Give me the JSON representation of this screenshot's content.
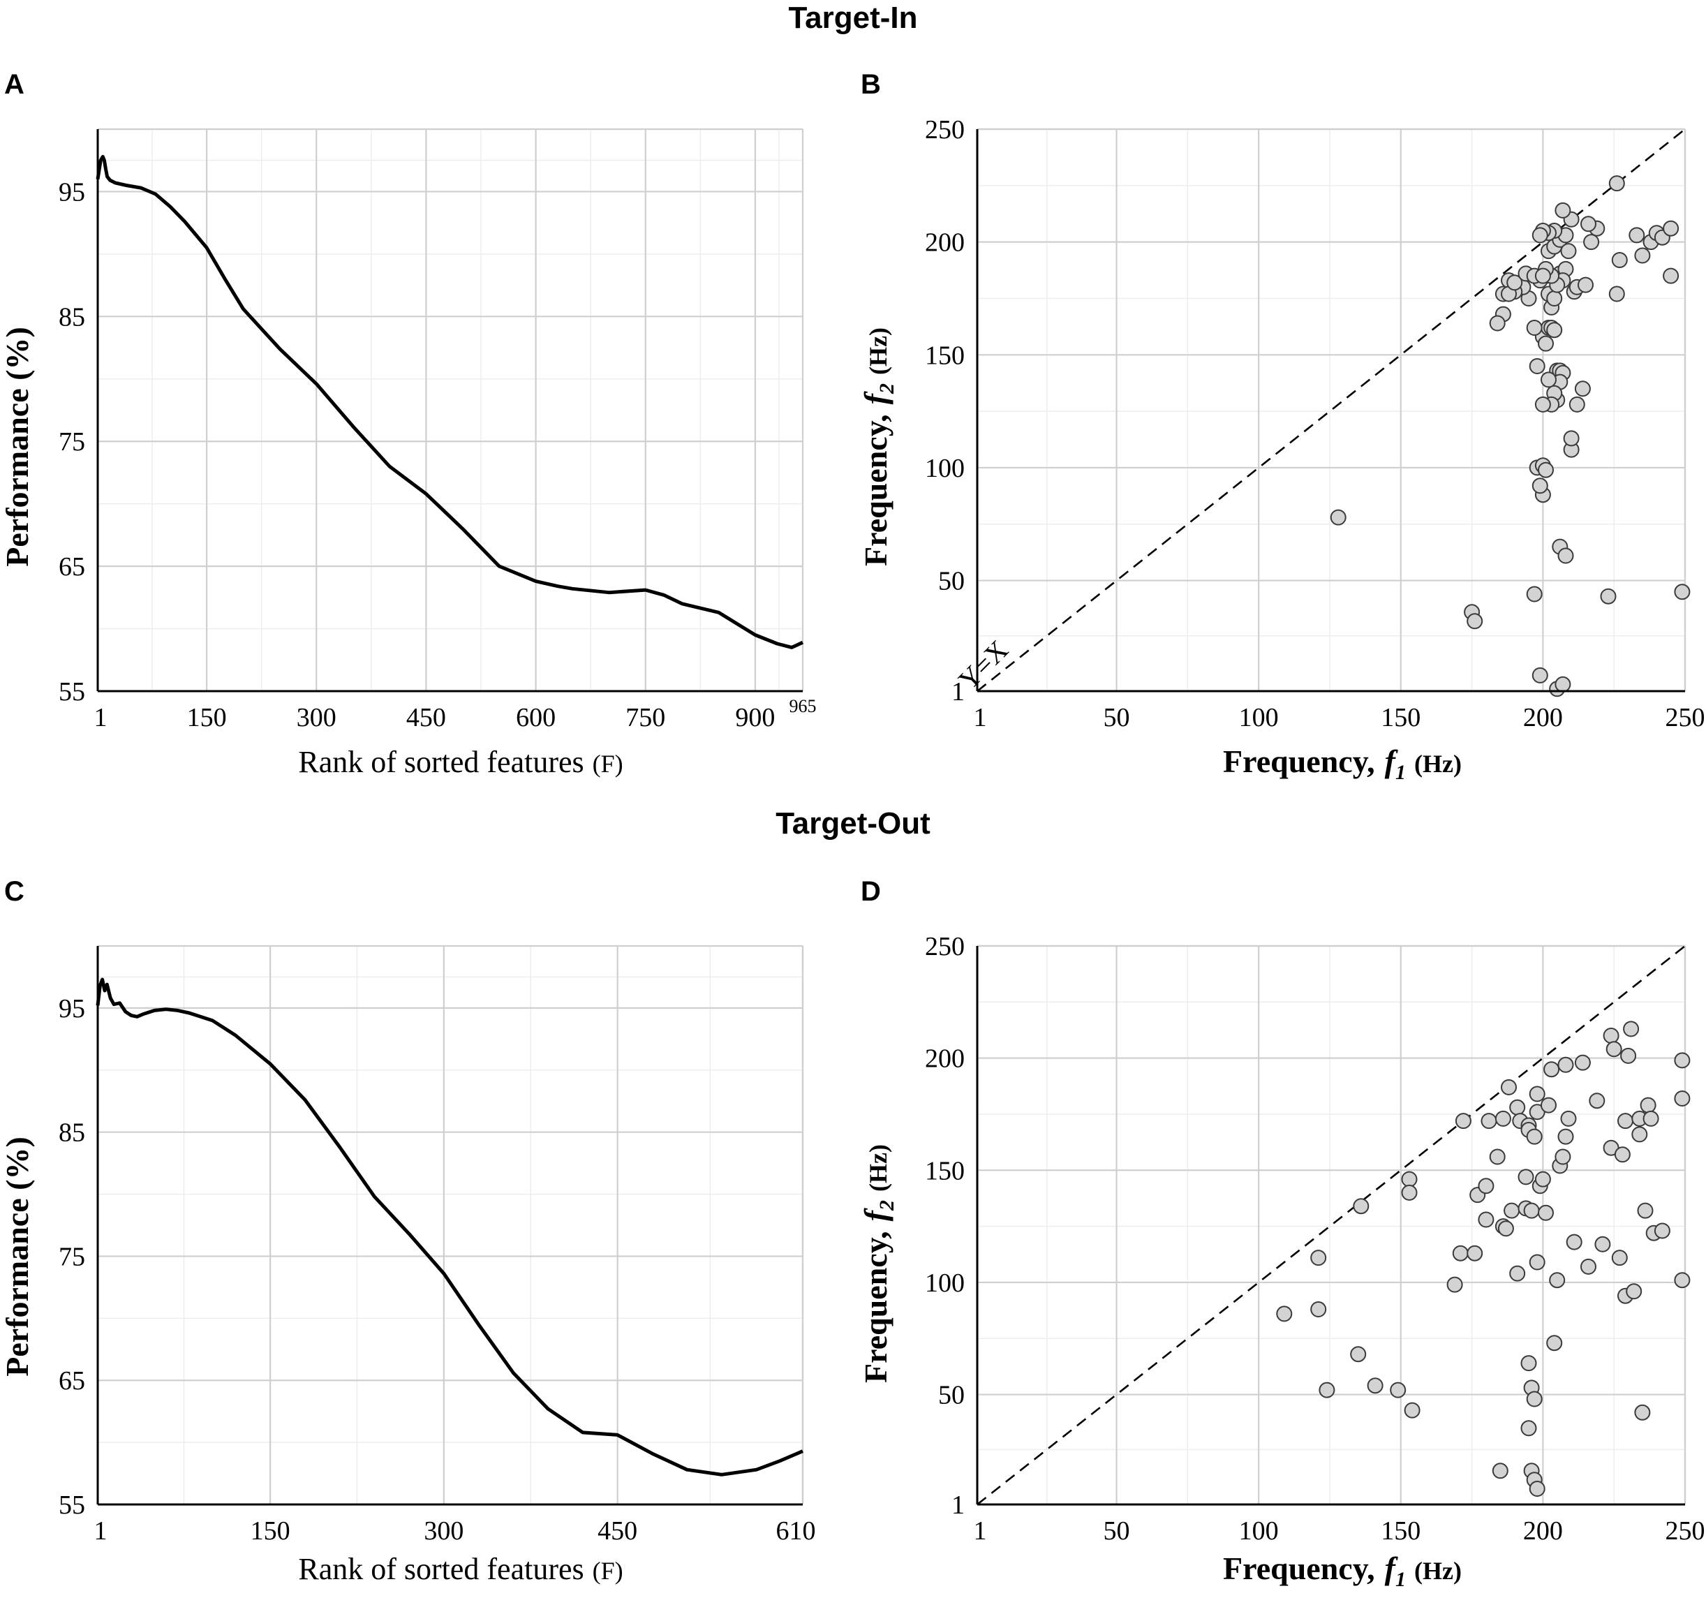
{
  "figure": {
    "section_titles": [
      "Target-In",
      "Target-Out"
    ]
  },
  "chart_data": [
    {
      "panel": "A",
      "type": "line",
      "title": "",
      "xlabel_main": "Rank of sorted features",
      "xlabel_unit": "(F)",
      "ylabel": "Performance (%)",
      "xlim": [
        1,
        965
      ],
      "ylim": [
        55,
        100
      ],
      "xticks": [
        "1",
        "150",
        "300",
        "450",
        "600",
        "750",
        "900"
      ],
      "xticks_extra": "965",
      "yticks": [
        "55",
        "65",
        "75",
        "85",
        "95"
      ],
      "x": [
        1,
        5,
        8,
        10,
        12,
        14,
        18,
        25,
        40,
        60,
        80,
        100,
        120,
        150,
        175,
        200,
        250,
        300,
        350,
        400,
        450,
        500,
        550,
        600,
        630,
        650,
        700,
        750,
        775,
        800,
        850,
        900,
        930,
        950,
        965
      ],
      "y": [
        96,
        97.5,
        97.8,
        97.5,
        96.8,
        96.2,
        95.9,
        95.7,
        95.5,
        95.3,
        94.8,
        93.8,
        92.6,
        90.5,
        88,
        85.6,
        82.4,
        79.6,
        76.2,
        73,
        70.8,
        68,
        65,
        63.8,
        63.4,
        63.2,
        62.9,
        63.1,
        62.7,
        62,
        61.3,
        59.5,
        58.8,
        58.5,
        58.9
      ],
      "line_color": "#000000"
    },
    {
      "panel": "B",
      "type": "scatter",
      "xlabel_main": "Frequency,",
      "xlabel_symbol": "f",
      "xlabel_sub": "1",
      "xlabel_unit": "(Hz)",
      "ylabel_main": "Frequency,",
      "ylabel_symbol": "f",
      "ylabel_sub": "2",
      "ylabel_unit": "(Hz)",
      "xlim": [
        1,
        250
      ],
      "ylim": [
        1,
        250
      ],
      "xticks": [
        "1",
        "50",
        "100",
        "150",
        "200",
        "250"
      ],
      "yticks": [
        "1",
        "50",
        "100",
        "150",
        "200",
        "250"
      ],
      "diagonal_label": "Y=X",
      "marker_color": "#d3d3d3",
      "x": [
        128,
        175,
        176,
        197,
        199,
        198,
        200,
        201,
        200,
        199,
        198,
        200,
        202,
        201,
        203,
        204,
        205,
        206,
        207,
        206,
        205,
        204,
        203,
        202,
        200,
        201,
        202,
        203,
        204,
        206,
        208,
        207,
        205,
        203,
        201,
        199,
        197,
        195,
        193,
        190,
        188,
        186,
        184,
        186,
        188,
        190,
        194,
        197,
        200,
        202,
        204,
        206,
        208,
        209,
        211,
        212,
        215,
        217,
        219,
        216,
        210,
        207,
        204,
        202,
        200,
        199,
        226,
        227,
        233,
        235,
        238,
        240,
        242,
        245,
        245,
        249,
        223,
        205,
        207,
        206,
        208,
        210,
        212,
        214,
        210,
        226
      ],
      "y": [
        78,
        36,
        32,
        44,
        8,
        100,
        101,
        99,
        88,
        92,
        145,
        158,
        162,
        155,
        162,
        161,
        143,
        143,
        142,
        138,
        130,
        133,
        128,
        139,
        128,
        185,
        177,
        171,
        175,
        186,
        188,
        183,
        181,
        185,
        188,
        183,
        162,
        175,
        180,
        178,
        183,
        168,
        164,
        177,
        177,
        182,
        186,
        185,
        185,
        196,
        198,
        201,
        203,
        196,
        178,
        180,
        181,
        200,
        206,
        208,
        210,
        214,
        205,
        204,
        205,
        203,
        226,
        192,
        203,
        194,
        200,
        204,
        202,
        206,
        185,
        45,
        43,
        2,
        4,
        65,
        61,
        108,
        128,
        135,
        113,
        177
      ]
    },
    {
      "panel": "C",
      "type": "line",
      "title": "",
      "xlabel_main": "Rank of sorted features",
      "xlabel_unit": "(F)",
      "ylabel": "Performance (%)",
      "xlim": [
        1,
        610
      ],
      "ylim": [
        55,
        100
      ],
      "xticks": [
        "1",
        "150",
        "300",
        "450",
        "610"
      ],
      "yticks": [
        "55",
        "65",
        "75",
        "85",
        "95"
      ],
      "x": [
        1,
        3,
        5,
        7,
        9,
        12,
        15,
        20,
        25,
        30,
        35,
        40,
        50,
        60,
        70,
        80,
        100,
        120,
        150,
        180,
        210,
        240,
        270,
        300,
        330,
        360,
        390,
        420,
        450,
        480,
        510,
        540,
        570,
        590,
        610
      ],
      "y": [
        95.2,
        96.8,
        97.3,
        96.4,
        96.9,
        95.8,
        95.3,
        95.4,
        94.7,
        94.4,
        94.3,
        94.5,
        94.8,
        94.9,
        94.8,
        94.6,
        94,
        92.8,
        90.5,
        87.6,
        83.8,
        79.8,
        76.8,
        73.6,
        69.5,
        65.6,
        62.7,
        60.8,
        60.6,
        59.1,
        57.8,
        57.4,
        57.8,
        58.5,
        59.3
      ],
      "line_color": "#000000"
    },
    {
      "panel": "D",
      "type": "scatter",
      "xlabel_main": "Frequency,",
      "xlabel_symbol": "f",
      "xlabel_sub": "1",
      "xlabel_unit": "(Hz)",
      "ylabel_main": "Frequency,",
      "ylabel_symbol": "f",
      "ylabel_sub": "2",
      "ylabel_unit": "(Hz)",
      "xlim": [
        1,
        250
      ],
      "ylim": [
        1,
        250
      ],
      "xticks": [
        "1",
        "50",
        "100",
        "150",
        "200",
        "250"
      ],
      "yticks": [
        "1",
        "50",
        "100",
        "150",
        "200",
        "250"
      ],
      "marker_color": "#d3d3d3",
      "x": [
        109,
        121,
        121,
        124,
        135,
        136,
        141,
        149,
        153,
        153,
        154,
        169,
        171,
        172,
        176,
        177,
        180,
        180,
        181,
        184,
        186,
        186,
        187,
        188,
        189,
        191,
        191,
        192,
        194,
        194,
        195,
        195,
        195,
        196,
        196,
        197,
        197,
        198,
        198,
        198,
        199,
        200,
        201,
        202,
        203,
        204,
        205,
        206,
        207,
        208,
        208,
        209,
        211,
        214,
        216,
        219,
        221,
        224,
        224,
        225,
        227,
        228,
        229,
        229,
        230,
        231,
        232,
        234,
        234,
        235,
        236,
        237,
        238,
        239,
        242,
        249,
        249,
        249,
        195,
        185,
        196,
        197,
        198
      ],
      "y": [
        86,
        88,
        111,
        52,
        68,
        134,
        54,
        52,
        146,
        140,
        43,
        99,
        113,
        172,
        113,
        139,
        128,
        143,
        172,
        156,
        173,
        125,
        124,
        187,
        132,
        178,
        104,
        172,
        147,
        133,
        170,
        168,
        64,
        53,
        132,
        165,
        48,
        109,
        176,
        184,
        143,
        146,
        131,
        179,
        195,
        73,
        101,
        152,
        156,
        165,
        197,
        173,
        118,
        198,
        107,
        181,
        117,
        210,
        160,
        204,
        111,
        157,
        172,
        94,
        201,
        213,
        96,
        166,
        173,
        42,
        132,
        179,
        173,
        122,
        123,
        101,
        182,
        199,
        35,
        16,
        16,
        12,
        8
      ]
    }
  ]
}
